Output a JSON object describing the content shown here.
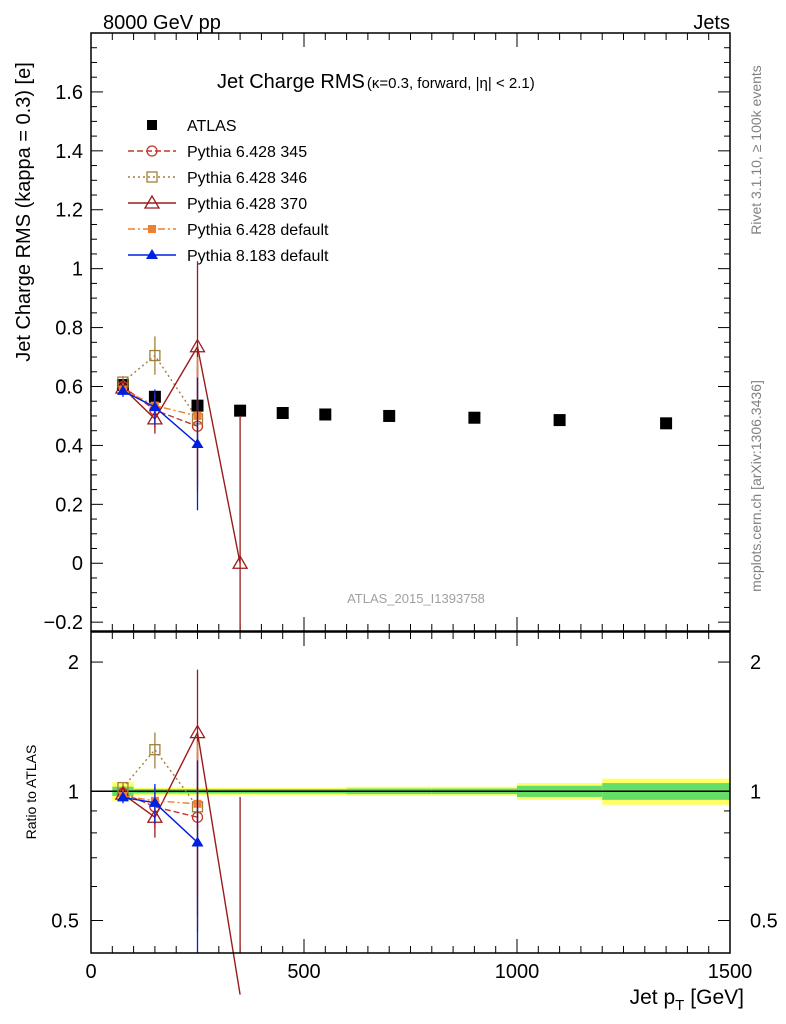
{
  "header": {
    "left": "8000 GeV pp",
    "right": "Jets"
  },
  "side_labels": {
    "rivet": "Rivet 3.1.10, ≥ 100k events",
    "source": "mcplots.cern.ch [arXiv:1306.3436]"
  },
  "title": {
    "main": "Jet Charge RMS",
    "sub": "(κ=0.3, forward, |η| < 2.1)"
  },
  "watermark": "ATLAS_2015_I1393758",
  "colors": {
    "atlas": "#000000",
    "p345": "#c0392b",
    "p346": "#a0803a",
    "p370": "#9b1b1b",
    "p6def": "#f08030",
    "p8def": "#0020e0",
    "band_inner": "#66dd66",
    "band_outer": "#ffff66"
  },
  "chart_data": [
    {
      "type": "line",
      "ylabel": "Jet Charge RMS (kappa = 0.3) [e]",
      "xlim": [
        0,
        1500
      ],
      "ylim": [
        -0.23,
        1.8
      ],
      "yticks": [
        -0.2,
        0,
        0.2,
        0.4,
        0.6,
        0.8,
        1,
        1.2,
        1.4,
        1.6
      ],
      "ytick_labels": [
        "−0.2",
        "0",
        "0.2",
        "0.4",
        "0.6",
        "0.8",
        "1",
        "1.2",
        "1.4",
        "1.6"
      ],
      "legend_placement": "top-left",
      "series": [
        {
          "name": "ATLAS",
          "key": "atlas",
          "marker": "square-filled",
          "line": "none",
          "x": [
            75,
            150,
            250,
            350,
            450,
            550,
            700,
            900,
            1100,
            1350
          ],
          "y": [
            0.605,
            0.565,
            0.535,
            0.518,
            0.51,
            0.505,
            0.5,
            0.494,
            0.486,
            0.475
          ],
          "err": [
            0.005,
            0.005,
            0.005,
            0.005,
            0.005,
            0.005,
            0.005,
            0.005,
            0.005,
            0.005
          ]
        },
        {
          "name": "Pythia 6.428 345",
          "key": "p345",
          "marker": "circle-open",
          "line": "dashed",
          "x": [
            75,
            150,
            250
          ],
          "y": [
            0.6,
            0.52,
            0.465
          ],
          "err": [
            0.02,
            0.06,
            0.2
          ]
        },
        {
          "name": "Pythia 6.428 346",
          "key": "p346",
          "marker": "square-open",
          "line": "dotted",
          "x": [
            75,
            150,
            250
          ],
          "y": [
            0.615,
            0.705,
            0.49
          ],
          "err": [
            0.02,
            0.065,
            0.25
          ]
        },
        {
          "name": "Pythia 6.428 370",
          "key": "p370",
          "marker": "triangle-open",
          "line": "solid",
          "x": [
            75,
            150,
            250,
            350
          ],
          "y": [
            0.595,
            0.49,
            0.735,
            0.0
          ],
          "err": [
            0.02,
            0.05,
            0.29,
            0.5
          ]
        },
        {
          "name": "Pythia 6.428 default",
          "key": "p6def",
          "marker": "square-filled-small",
          "line": "dashdot",
          "x": [
            75,
            150,
            250
          ],
          "y": [
            0.59,
            0.535,
            0.5
          ],
          "err": [
            0.02,
            0.04,
            0.2
          ]
        },
        {
          "name": "Pythia 8.183 default",
          "key": "p8def",
          "marker": "triangle-filled",
          "line": "solid",
          "x": [
            75,
            150,
            250
          ],
          "y": [
            0.585,
            0.53,
            0.405
          ],
          "err": [
            0.02,
            0.06,
            0.225
          ]
        }
      ]
    },
    {
      "type": "line",
      "xlabel": "Jet p_T [GeV]",
      "xlabel_main": "Jet p",
      "xlabel_sub": "T",
      "xlabel_unit": "[GeV]",
      "ylabel": "Ratio to ATLAS",
      "xlim": [
        0,
        1500
      ],
      "ylim": [
        0.42,
        2.35
      ],
      "log_y": true,
      "xticks": [
        0,
        500,
        1000,
        1500
      ],
      "yticks": [
        0.5,
        1,
        2
      ],
      "band": {
        "edges": [
          50,
          100,
          200,
          300,
          400,
          500,
          600,
          800,
          1000,
          1200,
          1500
        ],
        "inner": [
          0.025,
          0.012,
          0.012,
          0.012,
          0.012,
          0.012,
          0.015,
          0.015,
          0.03,
          0.045
        ],
        "outer": [
          0.05,
          0.02,
          0.02,
          0.02,
          0.02,
          0.02,
          0.025,
          0.025,
          0.045,
          0.07
        ]
      },
      "series": [
        {
          "name": "Pythia 6.428 345",
          "key": "p345",
          "x": [
            75,
            150,
            250
          ],
          "y": [
            0.99,
            0.92,
            0.87
          ],
          "err": [
            0.03,
            0.1,
            0.36
          ]
        },
        {
          "name": "Pythia 6.428 346",
          "key": "p346",
          "x": [
            75,
            150,
            250
          ],
          "y": [
            1.02,
            1.25,
            0.92
          ],
          "err": [
            0.03,
            0.12,
            0.45
          ]
        },
        {
          "name": "Pythia 6.428 370",
          "key": "p370",
          "x": [
            75,
            150,
            250,
            350
          ],
          "y": [
            0.985,
            0.87,
            1.37,
            0.0
          ],
          "err": [
            0.03,
            0.09,
            0.55,
            0.97
          ]
        },
        {
          "name": "Pythia 6.428 default",
          "key": "p6def",
          "x": [
            75,
            150,
            250
          ],
          "y": [
            0.975,
            0.95,
            0.935
          ],
          "err": [
            0.03,
            0.07,
            0.37
          ]
        },
        {
          "name": "Pythia 8.183 default",
          "key": "p8def",
          "x": [
            75,
            150,
            250
          ],
          "y": [
            0.968,
            0.94,
            0.76
          ],
          "err": [
            0.03,
            0.1,
            0.42
          ]
        }
      ]
    }
  ]
}
